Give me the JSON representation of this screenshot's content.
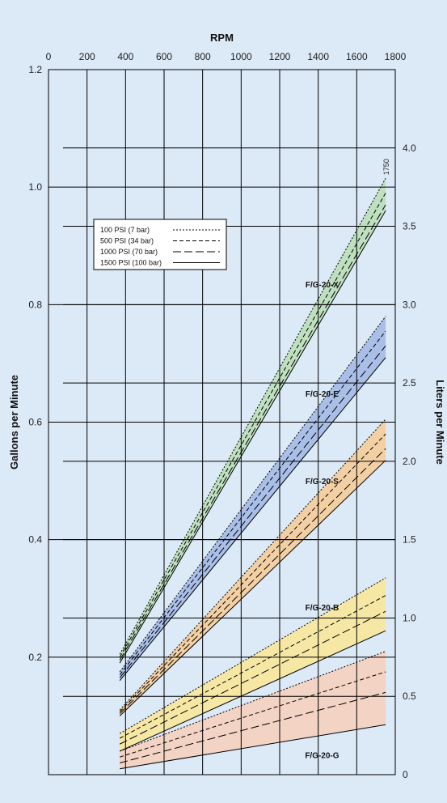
{
  "chart_data": {
    "type": "line",
    "title": "",
    "xlabel": "RPM",
    "ylabel": "Gallons per Minute",
    "y2label": "Liters per Minute",
    "xlim": [
      0,
      1800
    ],
    "ylim": [
      0,
      1.2
    ],
    "y2lim": [
      0,
      4.5
    ],
    "x_ticks": [
      0,
      200,
      400,
      600,
      800,
      1000,
      1200,
      1400,
      1600,
      1800
    ],
    "y_ticks": [
      0.2,
      0.4,
      0.6,
      0.8,
      1.0,
      1.2
    ],
    "y2_ticks": [
      0,
      0.5,
      1.0,
      1.5,
      2.0,
      2.5,
      3.0,
      3.5,
      4.0
    ],
    "y2_tick_labels": [
      "0",
      "0.5",
      "1.0",
      "1.5",
      "2.0",
      "2.5",
      "3.0",
      "3.5",
      "4.0"
    ],
    "grid": true,
    "legend_position": "upper-left",
    "annotation": "1750",
    "pressure_levels": [
      {
        "name": "100 PSI (7 bar)",
        "dash": "2,2"
      },
      {
        "name": "500 PSI (34 bar)",
        "dash": "5,3"
      },
      {
        "name": "1000 PSI (70 bar)",
        "dash": "10,4"
      },
      {
        "name": "1500 PSI (100 bar)",
        "dash": ""
      }
    ],
    "series": [
      {
        "name": "F/G-20-X",
        "color": "#bfe0bf",
        "x": [
          370,
          1750
        ],
        "values": [
          [
            0.205,
            1.015
          ],
          [
            0.2,
            0.99
          ],
          [
            0.195,
            0.97
          ],
          [
            0.19,
            0.96
          ]
        ]
      },
      {
        "name": "F/G-20-E",
        "color": "#a9bfe8",
        "x": [
          370,
          1750
        ],
        "values": [
          [
            0.175,
            0.78
          ],
          [
            0.17,
            0.755
          ],
          [
            0.165,
            0.73
          ],
          [
            0.16,
            0.71
          ]
        ]
      },
      {
        "name": "F/G-20-S",
        "color": "#f3cfa4",
        "x": [
          370,
          1750
        ],
        "values": [
          [
            0.11,
            0.605
          ],
          [
            0.107,
            0.58
          ],
          [
            0.104,
            0.555
          ],
          [
            0.1,
            0.535
          ]
        ]
      },
      {
        "name": "F/G-20-B",
        "color": "#f6e8a4",
        "x": [
          370,
          1750
        ],
        "values": [
          [
            0.07,
            0.335
          ],
          [
            0.062,
            0.305
          ],
          [
            0.052,
            0.278
          ],
          [
            0.04,
            0.245
          ]
        ]
      },
      {
        "name": "F/G-20-G",
        "color": "#f3d3c3",
        "x": [
          370,
          1750
        ],
        "values": [
          [
            0.04,
            0.21
          ],
          [
            0.03,
            0.175
          ],
          [
            0.02,
            0.14
          ],
          [
            0.01,
            0.085
          ]
        ]
      }
    ]
  }
}
